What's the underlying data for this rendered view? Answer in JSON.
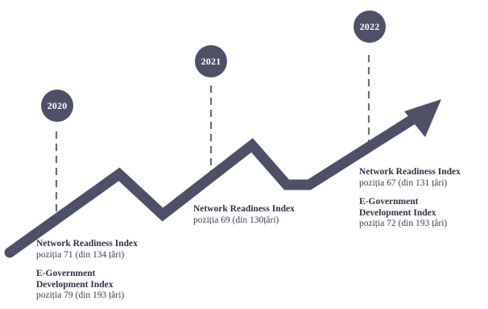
{
  "colors": {
    "accent": "#4e5068",
    "text": "#3c3f4f"
  },
  "milestones": [
    {
      "year": "2020",
      "items": [
        {
          "title": "Network Readiness Index",
          "value": "poziția 71 (din 134 țări)"
        },
        {
          "title": "E-Government Development Index",
          "title_lines": [
            "E-Government",
            "Development Index"
          ],
          "value": "poziția 79 (din 193 țări)"
        }
      ]
    },
    {
      "year": "2021",
      "items": [
        {
          "title": "Network Readiness Index",
          "value": "poziția 69 (din 130țări)"
        }
      ]
    },
    {
      "year": "2022",
      "items": [
        {
          "title": "Network Readiness Index",
          "value": "poziția 67 (din 131 țări)"
        },
        {
          "title": "E-Government Development Index",
          "title_lines": [
            "E-Government",
            "Development Index"
          ],
          "value": "poziția 72 (din 193 țări)"
        }
      ]
    }
  ]
}
